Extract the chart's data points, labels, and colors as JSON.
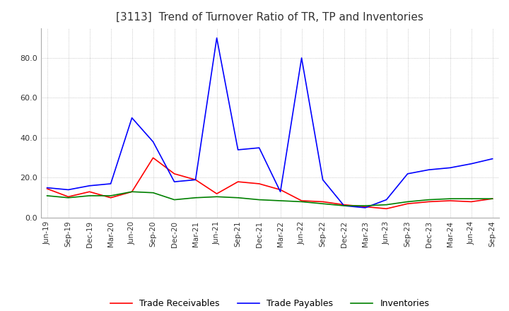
{
  "title": "[3113]  Trend of Turnover Ratio of TR, TP and Inventories",
  "title_fontsize": 11,
  "x_labels": [
    "Jun-19",
    "Sep-19",
    "Dec-19",
    "Mar-20",
    "Jun-20",
    "Sep-20",
    "Dec-20",
    "Mar-21",
    "Jun-21",
    "Sep-21",
    "Dec-21",
    "Mar-22",
    "Jun-22",
    "Sep-22",
    "Dec-22",
    "Mar-23",
    "Jun-23",
    "Sep-23",
    "Dec-23",
    "Mar-24",
    "Jun-24",
    "Sep-24"
  ],
  "trade_receivables": [
    14.5,
    10.5,
    13.0,
    10.0,
    13.0,
    30.0,
    22.0,
    19.0,
    12.0,
    18.0,
    17.0,
    14.0,
    8.5,
    8.0,
    6.5,
    5.5,
    4.5,
    7.0,
    8.0,
    8.5,
    8.0,
    9.5
  ],
  "trade_payables": [
    15.0,
    14.0,
    16.0,
    17.0,
    50.0,
    38.0,
    18.0,
    19.0,
    90.0,
    34.0,
    35.0,
    13.0,
    80.0,
    19.0,
    6.0,
    5.0,
    9.0,
    22.0,
    24.0,
    25.0,
    27.0,
    29.5
  ],
  "inventories": [
    11.0,
    10.0,
    11.0,
    11.0,
    13.0,
    12.5,
    9.0,
    10.0,
    10.5,
    10.0,
    9.0,
    8.5,
    8.0,
    7.0,
    6.0,
    6.0,
    6.5,
    8.0,
    9.0,
    9.5,
    9.5,
    9.5
  ],
  "tr_color": "#ff0000",
  "tp_color": "#0000ff",
  "inv_color": "#008000",
  "ylim": [
    0,
    95
  ],
  "yticks": [
    0.0,
    20.0,
    40.0,
    60.0,
    80.0
  ],
  "background_color": "#ffffff",
  "grid_color": "#aaaaaa",
  "legend_labels": [
    "Trade Receivables",
    "Trade Payables",
    "Inventories"
  ]
}
